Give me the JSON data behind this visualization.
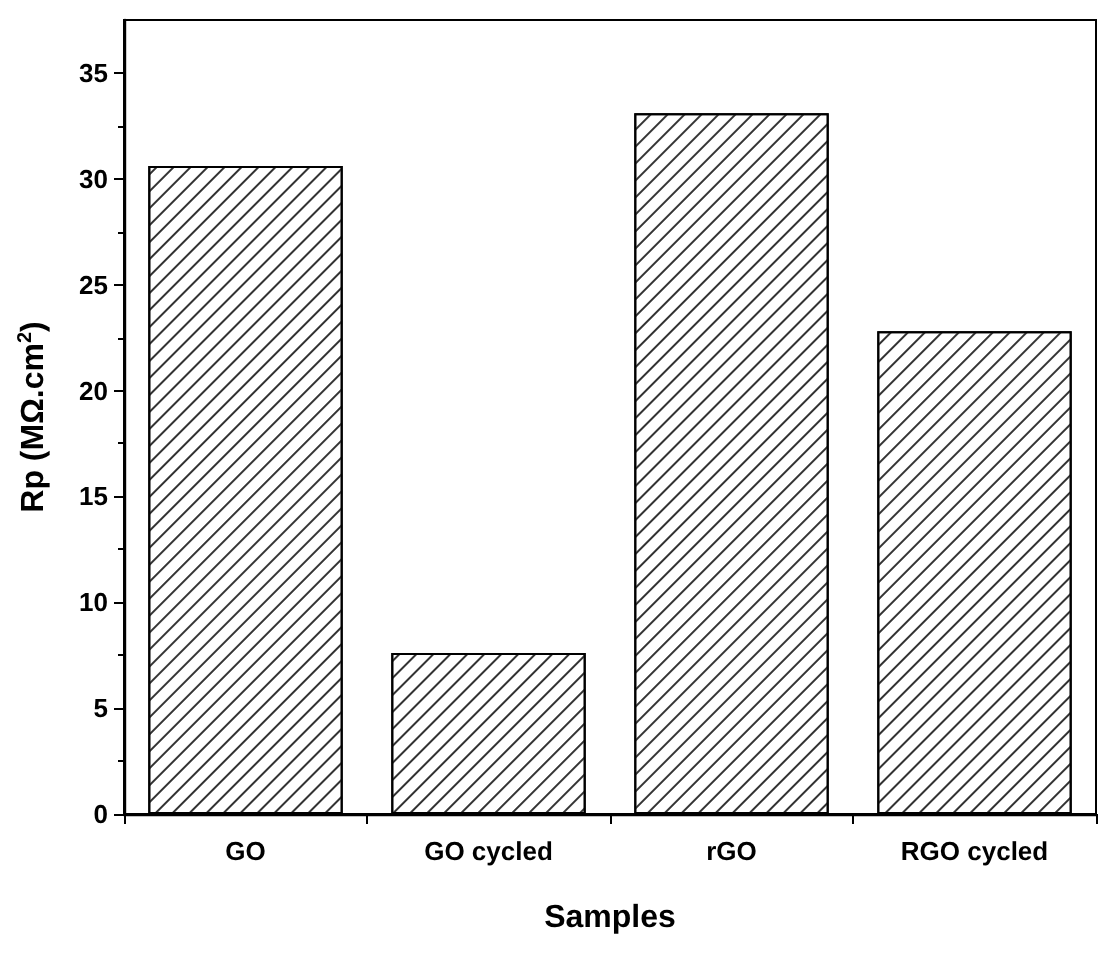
{
  "chart_data": {
    "type": "bar",
    "xlabel": "Samples",
    "ylabel": "Rp (MΩ.cm$^{2}$)",
    "categories": [
      "GO",
      "GO cycled",
      "rGO",
      "RGO cycled"
    ],
    "values": [
      30.6,
      7.6,
      33.1,
      22.8
    ],
    "color": "#ffffff",
    "ylim": [
      0,
      37.5
    ],
    "yticks": [
      0,
      5,
      10,
      15,
      20,
      25,
      30,
      35
    ],
    "grid": false
  }
}
